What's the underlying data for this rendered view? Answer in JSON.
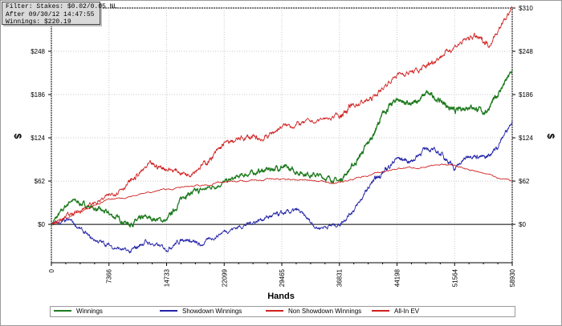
{
  "filter": {
    "line1": "Filter: Stakes: $0.02/0.05 NL",
    "line2": "After 09/30/12 14:47:55",
    "line3": "Winnings: $220.19"
  },
  "chart_data": {
    "type": "line",
    "xlabel": "Hands",
    "ylabel": "$",
    "xlim": [
      0,
      58930
    ],
    "ylim": [
      -55,
      310
    ],
    "x_ticks": [
      0,
      7366,
      14733,
      22099,
      29465,
      36831,
      44198,
      51564,
      58930
    ],
    "y_ticks": [
      0,
      62,
      124,
      186,
      248,
      310
    ],
    "y_tick_labels": [
      "$0",
      "$62",
      "$124",
      "$186",
      "$248",
      "$310"
    ],
    "grid": true,
    "legend": "bottom",
    "series": [
      {
        "name": "Winnings",
        "color": "#1e7a1e",
        "x": [
          0,
          2500,
          5000,
          7366,
          10000,
          12000,
          14733,
          17000,
          19000,
          22099,
          25000,
          27500,
          29465,
          31500,
          34000,
          36831,
          39000,
          41000,
          42500,
          44198,
          46000,
          48000,
          50000,
          51564,
          53500,
          55500,
          57000,
          58930
        ],
        "y": [
          0,
          35,
          25,
          15,
          0,
          10,
          5,
          42,
          48,
          60,
          72,
          78,
          82,
          75,
          70,
          62,
          90,
          125,
          160,
          180,
          170,
          188,
          175,
          162,
          170,
          160,
          185,
          220
        ]
      },
      {
        "name": "Showdown Winnings",
        "color": "#2323a8",
        "x": [
          0,
          2500,
          5000,
          7366,
          10000,
          12000,
          14733,
          17000,
          19000,
          22099,
          25000,
          27500,
          29465,
          31500,
          34000,
          36831,
          39000,
          41000,
          42500,
          44198,
          46000,
          48000,
          50000,
          51564,
          53500,
          55500,
          57000,
          58930
        ],
        "y": [
          0,
          5,
          -20,
          -30,
          -40,
          -25,
          -35,
          -20,
          -30,
          -10,
          0,
          10,
          15,
          20,
          -5,
          0,
          25,
          60,
          75,
          95,
          90,
          110,
          100,
          80,
          100,
          95,
          110,
          150
        ]
      },
      {
        "name": "Non Showdown Winnings",
        "color": "#d02020",
        "x": [
          0,
          7366,
          14733,
          22099,
          29465,
          36831,
          44198,
          51564,
          58930
        ],
        "y": [
          0,
          35,
          50,
          60,
          65,
          60,
          80,
          85,
          62
        ]
      },
      {
        "name": "All-In EV",
        "color": "#d02020",
        "x": [
          0,
          3500,
          7366,
          10000,
          12500,
          14733,
          17500,
          20000,
          22099,
          25000,
          27000,
          29465,
          32500,
          36831,
          38500,
          41000,
          44198,
          47000,
          49000,
          51564,
          54000,
          56000,
          58930
        ],
        "y": [
          0,
          20,
          40,
          60,
          85,
          80,
          72,
          90,
          115,
          125,
          122,
          140,
          145,
          155,
          170,
          180,
          215,
          220,
          235,
          255,
          270,
          258,
          310
        ]
      }
    ]
  }
}
